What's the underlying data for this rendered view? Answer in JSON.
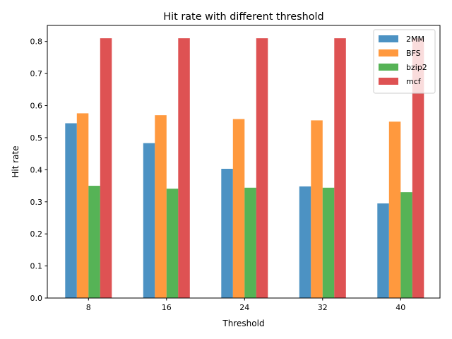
{
  "chart_data": {
    "type": "bar",
    "title": "Hit rate with different threshold",
    "xlabel": "Threshold",
    "ylabel": "Hit rate",
    "categories": [
      "8",
      "16",
      "24",
      "32",
      "40"
    ],
    "ylim": [
      0,
      0.85
    ],
    "yticks": [
      "0.0",
      "0.1",
      "0.2",
      "0.3",
      "0.4",
      "0.5",
      "0.6",
      "0.7",
      "0.8"
    ],
    "grid": false,
    "legend_position": "top-right",
    "series": [
      {
        "name": "2MM",
        "color": "#1f77b4",
        "values": [
          0.545,
          0.483,
          0.403,
          0.348,
          0.295
        ]
      },
      {
        "name": "BFS",
        "color": "#ff7f0e",
        "values": [
          0.576,
          0.57,
          0.558,
          0.554,
          0.55
        ]
      },
      {
        "name": "bzip2",
        "color": "#2ca02c",
        "values": [
          0.35,
          0.341,
          0.344,
          0.344,
          0.33
        ]
      },
      {
        "name": "mcf",
        "color": "#d62728",
        "values": [
          0.81,
          0.81,
          0.81,
          0.81,
          0.81
        ]
      }
    ]
  }
}
